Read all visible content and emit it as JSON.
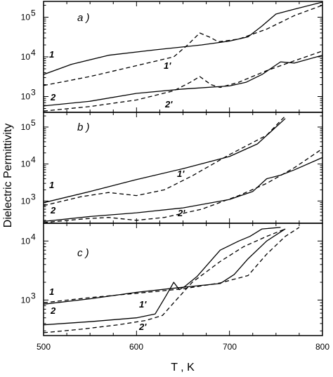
{
  "chart_data": {
    "type": "line",
    "xlabel": "T , K",
    "ylabel": "Dielectric Permittivity",
    "xlim": [
      500,
      800
    ],
    "xticks": [
      "500",
      "600",
      "700",
      "800"
    ],
    "yscale": "log",
    "grid": false,
    "panels": [
      {
        "label": "a )",
        "ylim": [
          400,
          250000
        ],
        "yticks": [
          {
            "value": 1000,
            "base": "10",
            "exp": "3"
          },
          {
            "value": 10000,
            "base": "10",
            "exp": "4"
          },
          {
            "value": 100000,
            "base": "10",
            "exp": "5"
          }
        ],
        "series": [
          {
            "name": "1",
            "style": "solid",
            "points": [
              [
                500,
                3600
              ],
              [
                530,
                6500
              ],
              [
                570,
                11000
              ],
              [
                620,
                15000
              ],
              [
                670,
                20000
              ],
              [
                700,
                25000
              ],
              [
                720,
                32000
              ],
              [
                735,
                60000
              ],
              [
                750,
                120000
              ],
              [
                770,
                160000
              ],
              [
                800,
                240000
              ]
            ]
          },
          {
            "name": "1'",
            "style": "dashed",
            "points": [
              [
                500,
                1900
              ],
              [
                550,
                3200
              ],
              [
                600,
                6000
              ],
              [
                640,
                10000
              ],
              [
                655,
                20000
              ],
              [
                668,
                40000
              ],
              [
                678,
                32000
              ],
              [
                688,
                24000
              ],
              [
                710,
                28000
              ],
              [
                740,
                50000
              ],
              [
                770,
                110000
              ],
              [
                800,
                200000
              ]
            ]
          },
          {
            "name": "2",
            "style": "solid",
            "points": [
              [
                500,
                580
              ],
              [
                550,
                760
              ],
              [
                600,
                1200
              ],
              [
                650,
                1550
              ],
              [
                700,
                1850
              ],
              [
                718,
                2300
              ],
              [
                735,
                3600
              ],
              [
                755,
                7500
              ],
              [
                770,
                7000
              ],
              [
                800,
                11000
              ]
            ]
          },
          {
            "name": "2'",
            "style": "dashed",
            "points": [
              [
                500,
                430
              ],
              [
                550,
                560
              ],
              [
                600,
                820
              ],
              [
                640,
                1400
              ],
              [
                658,
                2300
              ],
              [
                668,
                3200
              ],
              [
                680,
                2000
              ],
              [
                690,
                1700
              ],
              [
                710,
                2300
              ],
              [
                740,
                4500
              ],
              [
                770,
                8000
              ],
              [
                800,
                14000
              ]
            ]
          }
        ]
      },
      {
        "label": "b )",
        "ylim": [
          250,
          250000
        ],
        "yticks": [
          {
            "value": 1000,
            "base": "10",
            "exp": "3"
          },
          {
            "value": 10000,
            "base": "10",
            "exp": "4"
          },
          {
            "value": 100000,
            "base": "10",
            "exp": "5"
          }
        ],
        "series": [
          {
            "name": "1",
            "style": "solid",
            "points": [
              [
                500,
                900
              ],
              [
                550,
                1800
              ],
              [
                600,
                3800
              ],
              [
                650,
                7500
              ],
              [
                700,
                16000
              ],
              [
                730,
                35000
              ],
              [
                760,
                170000
              ]
            ]
          },
          {
            "name": "1'",
            "style": "dashed",
            "points": [
              [
                500,
                750
              ],
              [
                540,
                1300
              ],
              [
                570,
                1700
              ],
              [
                600,
                1400
              ],
              [
                630,
                2000
              ],
              [
                660,
                4800
              ],
              [
                700,
                18000
              ],
              [
                740,
                60000
              ],
              [
                760,
                200000
              ]
            ]
          },
          {
            "name": "2",
            "style": "solid",
            "points": [
              [
                500,
                280
              ],
              [
                550,
                380
              ],
              [
                600,
                480
              ],
              [
                650,
                650
              ],
              [
                700,
                1100
              ],
              [
                725,
                1800
              ],
              [
                740,
                4000
              ],
              [
                755,
                5000
              ],
              [
                770,
                7000
              ],
              [
                800,
                15000
              ]
            ]
          },
          {
            "name": "2'",
            "style": "dashed",
            "points": [
              [
                500,
                260
              ],
              [
                545,
                330
              ],
              [
                570,
                360
              ],
              [
                600,
                300
              ],
              [
                630,
                360
              ],
              [
                670,
                600
              ],
              [
                710,
                1400
              ],
              [
                740,
                3000
              ],
              [
                770,
                8000
              ],
              [
                800,
                26000
              ]
            ]
          }
        ]
      },
      {
        "label": "c )",
        "ylim": [
          250,
          20000
        ],
        "yticks": [
          {
            "value": 1000,
            "base": "10",
            "exp": "3"
          },
          {
            "value": 10000,
            "base": "10",
            "exp": "4"
          }
        ],
        "series": [
          {
            "name": "1",
            "style": "solid",
            "points": [
              [
                500,
                850
              ],
              [
                550,
                1050
              ],
              [
                600,
                1350
              ],
              [
                650,
                1650
              ],
              [
                690,
                1900
              ],
              [
                705,
                2700
              ],
              [
                720,
                5000
              ],
              [
                740,
                10000
              ],
              [
                760,
                16000
              ]
            ]
          },
          {
            "name": "1'",
            "style": "dashed",
            "points": [
              [
                500,
                900
              ],
              [
                550,
                1100
              ],
              [
                600,
                1300
              ],
              [
                650,
                1550
              ],
              [
                690,
                1950
              ],
              [
                720,
                2600
              ],
              [
                740,
                6000
              ],
              [
                760,
                12000
              ],
              [
                775,
                17000
              ]
            ]
          },
          {
            "name": "2",
            "style": "solid",
            "points": [
              [
                500,
                380
              ],
              [
                550,
                430
              ],
              [
                600,
                500
              ],
              [
                620,
                580
              ],
              [
                632,
                1200
              ],
              [
                640,
                2000
              ],
              [
                646,
                1500
              ],
              [
                652,
                1700
              ],
              [
                665,
                2500
              ],
              [
                690,
                7000
              ],
              [
                710,
                10000
              ],
              [
                722,
                12000
              ],
              [
                735,
                16000
              ],
              [
                755,
                17000
              ]
            ]
          },
          {
            "name": "2'",
            "style": "dashed",
            "points": [
              [
                500,
                280
              ],
              [
                540,
                320
              ],
              [
                580,
                380
              ],
              [
                610,
                450
              ],
              [
                628,
                550
              ],
              [
                640,
                900
              ],
              [
                660,
                2000
              ],
              [
                690,
                4500
              ],
              [
                715,
                8000
              ],
              [
                740,
                12000
              ],
              [
                760,
                16000
              ]
            ]
          }
        ]
      }
    ]
  }
}
